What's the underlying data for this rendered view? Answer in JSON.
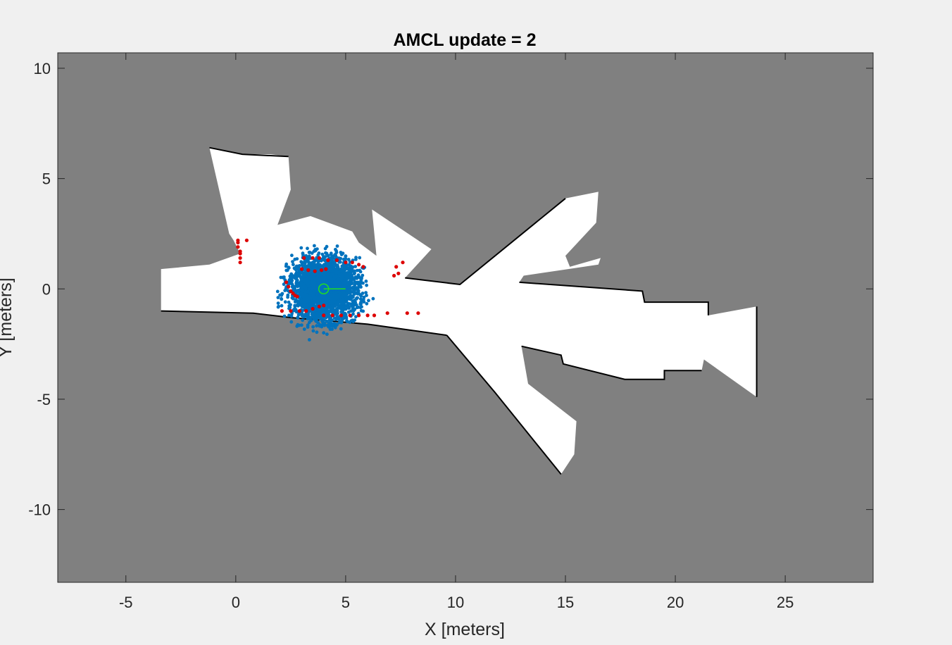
{
  "chart_data": {
    "type": "scatter",
    "title": "AMCL update = 2",
    "xlabel": "X [meters]",
    "ylabel": "Y [meters]",
    "xlim": [
      -8.1,
      29
    ],
    "ylim": [
      -13.3,
      10.7
    ],
    "xticks": [
      -5,
      0,
      5,
      10,
      15,
      20,
      25
    ],
    "yticks": [
      10,
      5,
      0,
      -5,
      -10
    ],
    "grid": false,
    "legend": "none",
    "colors": {
      "unknown_cell": "#808080",
      "free_cell": "#ffffff",
      "occupied_cell": "#000000",
      "particles": "#0072bd",
      "scan_hits": "#dd0000",
      "pose_estimate": "#22dd22",
      "figure_bg": "#f0f0f0"
    },
    "map_free_regions": [
      [
        [
          -3.4,
          -1.0
        ],
        [
          -3.4,
          0.9
        ],
        [
          -1.2,
          1.1
        ],
        [
          0.2,
          1.6
        ],
        [
          -0.1,
          2.2
        ],
        [
          -0.3,
          2.5
        ],
        [
          -1.2,
          6.4
        ],
        [
          0.3,
          6.1
        ],
        [
          1.6,
          6.1
        ],
        [
          2.4,
          6.0
        ],
        [
          2.5,
          4.5
        ],
        [
          1.9,
          2.9
        ],
        [
          3.4,
          3.3
        ],
        [
          5.3,
          2.6
        ],
        [
          5.6,
          2.1
        ],
        [
          6.4,
          1.5
        ],
        [
          6.2,
          3.6
        ],
        [
          8.9,
          1.8
        ],
        [
          7.7,
          0.5
        ],
        [
          10.2,
          0.2
        ],
        [
          15.0,
          4.1
        ],
        [
          16.5,
          4.4
        ],
        [
          16.4,
          3.0
        ],
        [
          15.0,
          1.5
        ],
        [
          15.2,
          1.0
        ],
        [
          16.6,
          1.4
        ],
        [
          16.5,
          1.1
        ],
        [
          13.1,
          0.6
        ],
        [
          12.9,
          0.3
        ],
        [
          18.5,
          -0.1
        ],
        [
          18.6,
          -0.6
        ],
        [
          21.5,
          -0.6
        ],
        [
          21.5,
          -1.2
        ],
        [
          23.7,
          -0.8
        ],
        [
          23.7,
          -4.9
        ],
        [
          21.3,
          -3.2
        ],
        [
          21.2,
          -3.7
        ],
        [
          19.5,
          -3.7
        ],
        [
          19.5,
          -4.1
        ],
        [
          17.7,
          -4.1
        ],
        [
          14.9,
          -3.4
        ],
        [
          14.8,
          -3.0
        ],
        [
          13.0,
          -2.6
        ],
        [
          13.3,
          -4.3
        ],
        [
          15.5,
          -6.0
        ],
        [
          15.4,
          -7.5
        ],
        [
          14.8,
          -8.4
        ],
        [
          11.8,
          -4.7
        ],
        [
          9.6,
          -2.1
        ],
        [
          6.0,
          -1.6
        ],
        [
          4.2,
          -1.5
        ],
        [
          2.5,
          -1.3
        ],
        [
          0.8,
          -1.1
        ]
      ]
    ],
    "map_wall_segments": [
      [
        [
          -3.4,
          -1.0
        ],
        [
          0.8,
          -1.1
        ],
        [
          2.5,
          -1.3
        ],
        [
          6.0,
          -1.6
        ],
        [
          9.6,
          -2.1
        ]
      ],
      [
        [
          9.6,
          -2.1
        ],
        [
          11.8,
          -4.7
        ],
        [
          14.8,
          -8.4
        ]
      ],
      [
        [
          7.7,
          0.5
        ],
        [
          10.2,
          0.2
        ],
        [
          15.0,
          4.1
        ]
      ],
      [
        [
          12.9,
          0.3
        ],
        [
          18.5,
          -0.1
        ],
        [
          18.6,
          -0.6
        ],
        [
          21.5,
          -0.6
        ],
        [
          21.5,
          -1.2
        ]
      ],
      [
        [
          13.0,
          -2.6
        ],
        [
          14.8,
          -3.0
        ],
        [
          14.9,
          -3.4
        ],
        [
          17.7,
          -4.1
        ],
        [
          19.5,
          -4.1
        ],
        [
          19.5,
          -3.7
        ],
        [
          21.2,
          -3.7
        ]
      ],
      [
        [
          23.7,
          -0.8
        ],
        [
          23.7,
          -4.9
        ]
      ],
      [
        [
          -1.2,
          6.4
        ],
        [
          0.3,
          6.1
        ],
        [
          2.4,
          6.0
        ]
      ]
    ],
    "particles": {
      "center": [
        4.0,
        0.0
      ],
      "std": [
        0.75,
        0.7
      ],
      "count": 2600,
      "seed": 7
    },
    "estimated_pose": {
      "x": 4.0,
      "y": 0.0,
      "theta_deg": 0
    },
    "scan_points": [
      [
        0.1,
        2.2
      ],
      [
        0.1,
        2.1
      ],
      [
        0.5,
        2.2
      ],
      [
        0.1,
        1.9
      ],
      [
        0.2,
        1.7
      ],
      [
        0.2,
        1.6
      ],
      [
        0.2,
        1.4
      ],
      [
        0.2,
        1.2
      ],
      [
        3.1,
        1.4
      ],
      [
        3.5,
        1.4
      ],
      [
        3.8,
        1.4
      ],
      [
        4.2,
        1.3
      ],
      [
        4.6,
        1.3
      ],
      [
        5.0,
        1.2
      ],
      [
        5.3,
        1.2
      ],
      [
        5.6,
        1.1
      ],
      [
        5.8,
        1.0
      ],
      [
        3.0,
        0.9
      ],
      [
        3.3,
        0.85
      ],
      [
        3.6,
        0.8
      ],
      [
        3.9,
        0.85
      ],
      [
        4.1,
        0.9
      ],
      [
        7.6,
        1.2
      ],
      [
        7.3,
        1.0
      ],
      [
        7.4,
        0.7
      ],
      [
        7.2,
        0.6
      ],
      [
        2.3,
        0.3
      ],
      [
        2.4,
        0.1
      ],
      [
        2.5,
        -0.1
      ],
      [
        2.6,
        -0.2
      ],
      [
        2.7,
        -0.3
      ],
      [
        2.8,
        -0.35
      ],
      [
        2.1,
        -1.0
      ],
      [
        2.5,
        -1.0
      ],
      [
        2.9,
        -1.0
      ],
      [
        3.2,
        -1.0
      ],
      [
        3.5,
        -0.9
      ],
      [
        3.8,
        -0.8
      ],
      [
        4.0,
        -0.75
      ],
      [
        4.0,
        -1.2
      ],
      [
        4.4,
        -1.2
      ],
      [
        4.8,
        -1.2
      ],
      [
        5.2,
        -1.2
      ],
      [
        5.6,
        -1.2
      ],
      [
        6.0,
        -1.2
      ],
      [
        6.3,
        -1.2
      ],
      [
        6.9,
        -1.1
      ],
      [
        7.8,
        -1.1
      ],
      [
        8.3,
        -1.1
      ]
    ]
  }
}
